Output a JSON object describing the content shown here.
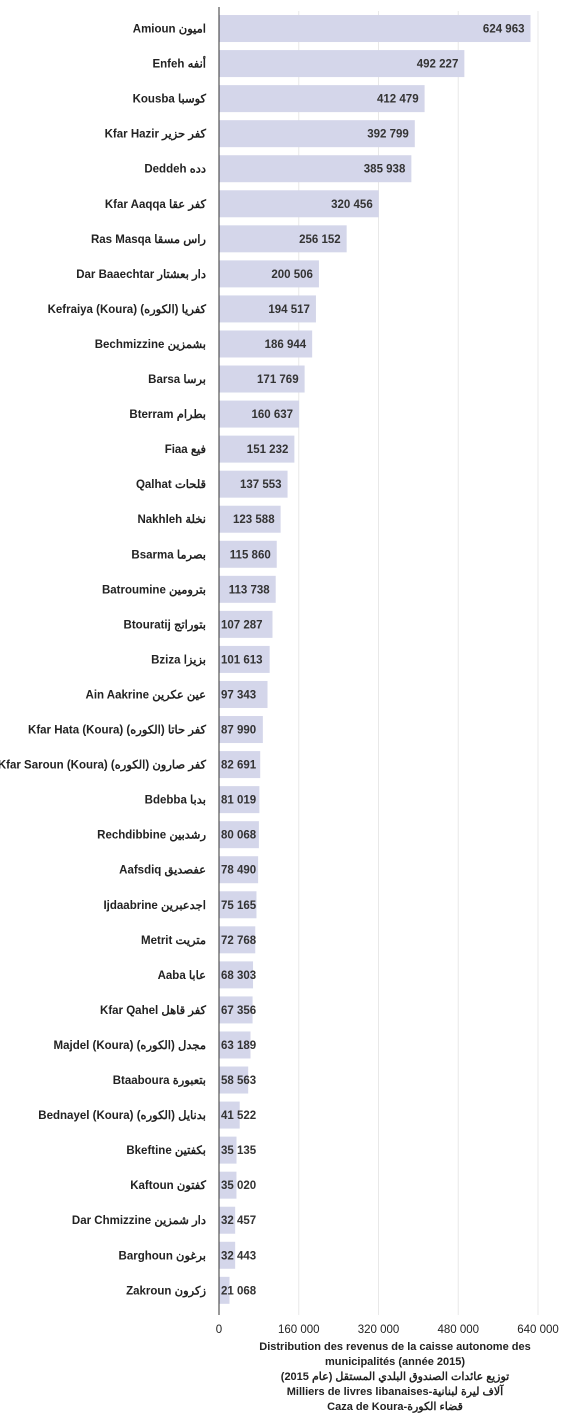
{
  "chart_data": {
    "type": "bar",
    "orientation": "horizontal",
    "categories": [
      "Amioun اميون",
      "Enfeh أنفه",
      "Kousba كوسبا",
      "Kfar Hazir كفر حزير",
      "Deddeh دده",
      "Kfar Aaqqa كفر عقا",
      "Ras Masqa راس مسقا",
      "Dar Baaechtar دار بعشتار",
      "Kefraiya (Koura) كفريا (الكوره)",
      "Bechmizzine بشمزين",
      "Barsa برسا",
      "Bterram بطرام",
      "Fiaa فيع",
      "Qalhat قلحات",
      "Nakhleh نخلة",
      "Bsarma بصرما",
      "Batroumine بترومين",
      "Btouratij بتوراتج",
      "Bziza بزيزا",
      "Ain Aakrine عين عكرين",
      "Kfar Hata (Koura) كفر حاتا (الكوره)",
      "Kfar Saroun (Koura) كفر صارون (الكوره)",
      "Bdebba بدبا",
      "Rechdibbine رشدبين",
      "Aafsdiq عفصديق",
      "Ijdaabrine اجدعبرين",
      "Metrit متريت",
      "Aaba عابا",
      "Kfar Qahel كفر قاهل",
      "Majdel (Koura) مجدل (الكوره)",
      "Btaaboura بتعبورة",
      "Bednayel (Koura) بدنايل (الكوره)",
      "Bkeftine بكفتين",
      "Kaftoun كفتون",
      "Dar Chmizzine دار شمزين",
      "Barghoun برغون",
      "Zakroun زكرون"
    ],
    "values": [
      624963,
      492227,
      412479,
      392799,
      385938,
      320456,
      256152,
      200506,
      194517,
      186944,
      171769,
      160637,
      151232,
      137553,
      123588,
      115860,
      113738,
      107287,
      101613,
      97343,
      87990,
      82691,
      81019,
      80068,
      78490,
      75165,
      72768,
      68303,
      67356,
      63189,
      58563,
      41522,
      35135,
      35020,
      32457,
      32443,
      21068
    ],
    "value_labels": [
      "624 963",
      "492 227",
      "412 479",
      "392 799",
      "385 938",
      "320 456",
      "256 152",
      "200 506",
      "194 517",
      "186 944",
      "171 769",
      "160 637",
      "151 232",
      "137 553",
      "123 588",
      "115 860",
      "113 738",
      "107 287",
      "101 613",
      "97 343",
      "87 990",
      "82 691",
      "81 019",
      "80 068",
      "78 490",
      "75 165",
      "72 768",
      "68 303",
      "67 356",
      "63 189",
      "58 563",
      "41 522",
      "35 135",
      "35 020",
      "32 457",
      "32 443",
      "21 068"
    ],
    "xlim": [
      0,
      640000
    ],
    "xticks": [
      0,
      160000,
      320000,
      480000,
      640000
    ],
    "xtick_labels": [
      "0",
      "160 000",
      "320 000",
      "480 000",
      "640 000"
    ],
    "grid": true,
    "bar_color": "#d4d6ea",
    "grid_color": "#e8e8e8"
  },
  "caption": {
    "line1": "Distribution des revenus de la caisse autonome des",
    "line2": "municipalités (année 2015)",
    "line3": "توزيع عائدات الصندوق البلدي المستقل (عام 2015)",
    "line4": "Milliers de livres libanaises-آلاف ليرة لبنانية",
    "line5": "Caza de Koura-قضاء الكورة"
  }
}
